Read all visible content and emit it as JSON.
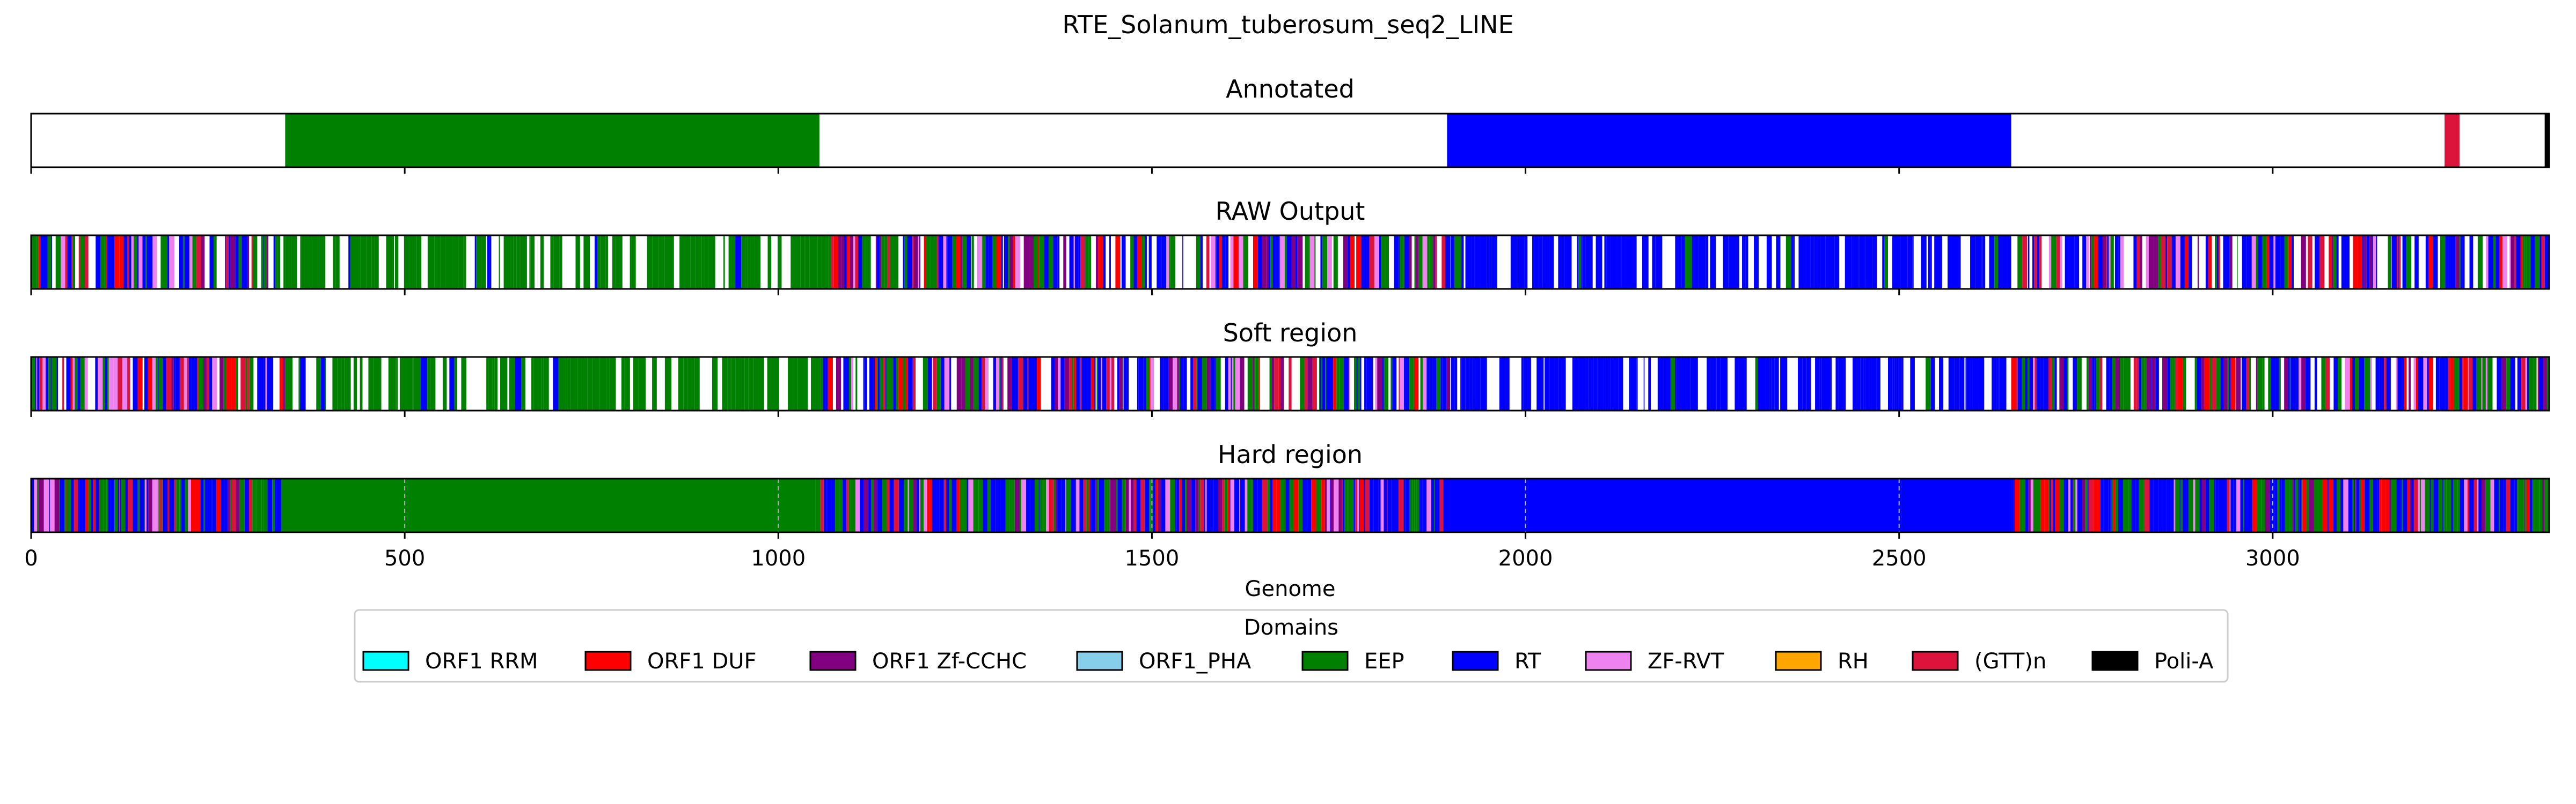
{
  "chart_data": {
    "type": "genome-track",
    "title": "RTE_Solanum_tuberosum_seq2_LINE",
    "xlabel": "Genome",
    "xlim": [
      0,
      3370
    ],
    "xticks": [
      0,
      500,
      1000,
      1500,
      2000,
      2500,
      3000
    ],
    "grid": "vertical dashed, Hard region panel only",
    "legend": {
      "title": "Domains",
      "placement": "below-center"
    },
    "domains": [
      {
        "name": "ORF1 RRM",
        "color": "#00FFFF"
      },
      {
        "name": "ORF1 DUF",
        "color": "#FF0000"
      },
      {
        "name": "ORF1 Zf-CCHC",
        "color": "#800080"
      },
      {
        "name": "ORF1_PHA",
        "color": "#87CEEB"
      },
      {
        "name": "EEP",
        "color": "#008000"
      },
      {
        "name": "RT",
        "color": "#0000FF"
      },
      {
        "name": "ZF-RVT",
        "color": "#EE82EE"
      },
      {
        "name": "RH",
        "color": "#FFA500"
      },
      {
        "name": "(GTT)n",
        "color": "#DC143C"
      },
      {
        "name": "Poli-A",
        "color": "#000000"
      }
    ],
    "panels": [
      {
        "name": "Annotated",
        "segments": [
          {
            "domain": "EEP",
            "start": 340,
            "end": 1055
          },
          {
            "domain": "RT",
            "start": 1895,
            "end": 2650
          },
          {
            "domain": "(GTT)n",
            "start": 3230,
            "end": 3250
          },
          {
            "domain": "Poli-A",
            "start": 3364,
            "end": 3370
          }
        ]
      },
      {
        "name": "RAW Output",
        "segments": [
          {
            "domain": "mixed",
            "start": 0,
            "end": 340
          },
          {
            "domain": "EEP",
            "start": 340,
            "end": 1060,
            "sparse": true
          },
          {
            "domain": "mixed",
            "start": 1060,
            "end": 1900
          },
          {
            "domain": "RT",
            "start": 1900,
            "end": 2650,
            "sparse": true
          },
          {
            "domain": "mixed",
            "start": 2650,
            "end": 3370
          }
        ]
      },
      {
        "name": "Soft region",
        "segments": [
          {
            "domain": "mixed",
            "start": 0,
            "end": 340
          },
          {
            "domain": "EEP",
            "start": 340,
            "end": 1060,
            "sparse": true
          },
          {
            "domain": "mixed",
            "start": 1060,
            "end": 1900
          },
          {
            "domain": "RT",
            "start": 1900,
            "end": 2650,
            "sparse": true
          },
          {
            "domain": "mixed",
            "start": 2650,
            "end": 3370
          }
        ]
      },
      {
        "name": "Hard region",
        "segments": [
          {
            "domain": "mixed",
            "start": 0,
            "end": 335
          },
          {
            "domain": "EEP",
            "start": 335,
            "end": 1050
          },
          {
            "domain": "mixed",
            "start": 1050,
            "end": 1890
          },
          {
            "domain": "RT",
            "start": 1890,
            "end": 2650
          },
          {
            "domain": "mixed",
            "start": 2650,
            "end": 3370
          }
        ]
      }
    ]
  }
}
